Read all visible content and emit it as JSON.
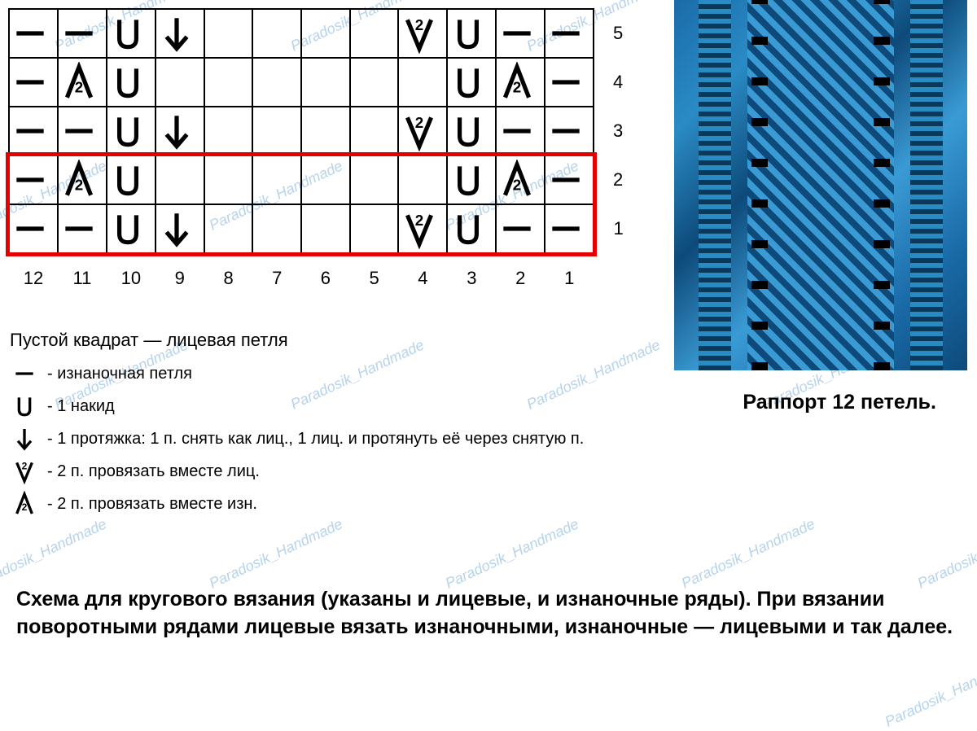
{
  "chart": {
    "cols": 12,
    "rows": 5,
    "col_labels": [
      "12",
      "11",
      "10",
      "9",
      "8",
      "7",
      "6",
      "5",
      "4",
      "3",
      "2",
      "1"
    ],
    "row_labels": [
      "5",
      "4",
      "3",
      "2",
      "1"
    ],
    "highlight_rows": [
      1,
      2
    ],
    "highlight_color": "#e50000",
    "border_color": "#000000",
    "cell_bg": "#ffffff",
    "grid": [
      [
        "dash",
        "dash",
        "U",
        "arrow",
        "",
        "",
        "",
        "",
        "V2",
        "U",
        "dash",
        "dash"
      ],
      [
        "dash",
        "A2",
        "U",
        "",
        "",
        "",
        "",
        "",
        "",
        "U",
        "A2",
        "dash"
      ],
      [
        "dash",
        "dash",
        "U",
        "arrow",
        "",
        "",
        "",
        "",
        "V2",
        "U",
        "dash",
        "dash"
      ],
      [
        "dash",
        "A2",
        "U",
        "",
        "",
        "",
        "",
        "",
        "",
        "U",
        "A2",
        "dash"
      ],
      [
        "dash",
        "dash",
        "U",
        "arrow",
        "",
        "",
        "",
        "",
        "V2",
        "U",
        "dash",
        "dash"
      ]
    ]
  },
  "legend": {
    "title": "Пустой квадрат — лицевая петля",
    "items": [
      {
        "sym": "dash",
        "text": "- изнаночная петля"
      },
      {
        "sym": "U",
        "text": "- 1 накид"
      },
      {
        "sym": "arrow",
        "text": "- 1 протяжка: 1 п. снять как лиц., 1 лиц. и протянуть её через снятую п."
      },
      {
        "sym": "V2",
        "text": "- 2 п. провязать вместе лиц."
      },
      {
        "sym": "A2",
        "text": "- 2 п. провязать вместе изн."
      }
    ]
  },
  "rapport_text": "Раппорт 12 петель.",
  "bottom_text": "Схема для кругового вязания (указаны и лицевые, и изнаночные ряды). При вязании поворотными рядами лицевые вязать изнаночными, изнаночные — лицевыми и так далее.",
  "watermark_text": "Paradosik_Handmade",
  "watermark_color": "#6fa8dc",
  "photo_colors": {
    "light": "#3a9bd4",
    "mid": "#2a8bc4",
    "dark": "#0d4a7a",
    "darkest": "#0a3a5a"
  }
}
